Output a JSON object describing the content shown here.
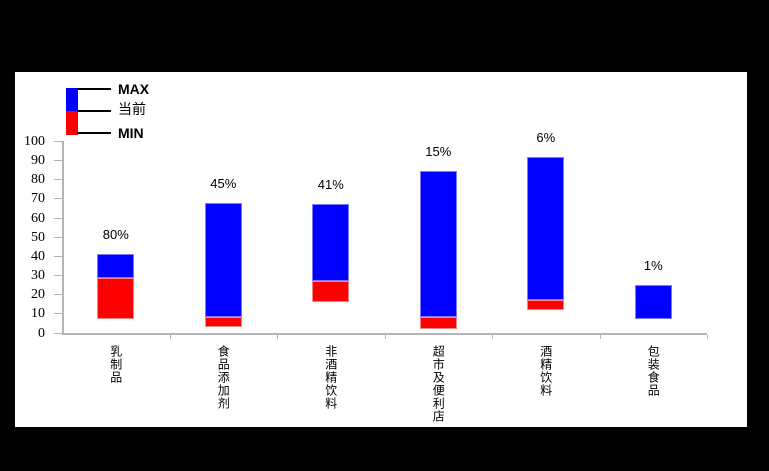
{
  "canvas": {
    "background": "#000000",
    "chart_background": "#ffffff"
  },
  "colors": {
    "max_segment": "#0000fe",
    "current_segment": "#fe0000",
    "axis": "#b5b5b5",
    "text": "#000000"
  },
  "legend": {
    "max_label": "MAX",
    "current_label": "当前",
    "min_label": "MIN"
  },
  "chart_data": {
    "type": "bar",
    "subtype": "floating-range-bar (blue = current→max, red = min→current)",
    "title": "",
    "xlabel": "",
    "ylabel": "",
    "categories": [
      "乳制品",
      "食品添加剂",
      "非酒精饮料",
      "超市及便利店",
      "酒精饮料",
      "包装食品"
    ],
    "series": [
      {
        "name": "MIN",
        "values": [
          7,
          3,
          16,
          2,
          12,
          7
        ]
      },
      {
        "name": "当前",
        "values": [
          28.5,
          8,
          27,
          8,
          17,
          7
        ]
      },
      {
        "name": "MAX",
        "values": [
          41,
          67.5,
          67,
          84.5,
          91.5,
          25
        ]
      }
    ],
    "bar_labels": [
      "80%",
      "45%",
      "41%",
      "15%",
      "6%",
      "1%"
    ],
    "ylim": [
      0,
      100
    ],
    "ytick_step": 10,
    "yticks": [
      "0",
      "10",
      "20",
      "30",
      "40",
      "50",
      "60",
      "70",
      "80",
      "90",
      "100"
    ],
    "grid": false,
    "legend_position": "top-left"
  }
}
